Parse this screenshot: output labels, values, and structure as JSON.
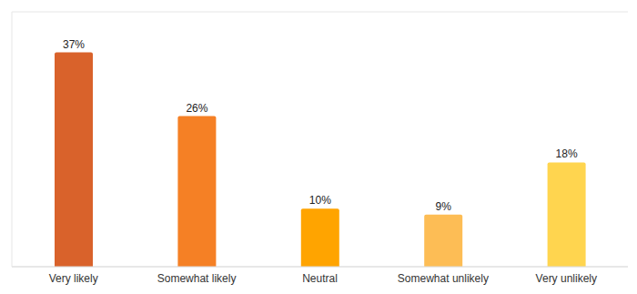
{
  "chart_data": {
    "type": "bar",
    "categories": [
      "Very likely",
      "Somewhat likely",
      "Neutral",
      "Somewhat unlikely",
      "Very unlikely"
    ],
    "values": [
      37,
      26,
      10,
      9,
      18
    ],
    "value_labels": [
      "37%",
      "26%",
      "10%",
      "9%",
      "18%"
    ],
    "colors": [
      "#d9622b",
      "#f58025",
      "#ffa400",
      "#fdbd55",
      "#ffd54f"
    ],
    "ylim": [
      0,
      44
    ],
    "yticks": [
      0,
      11,
      22,
      33,
      44
    ],
    "grid": true,
    "data_labels": true,
    "tick_labels": "x"
  }
}
